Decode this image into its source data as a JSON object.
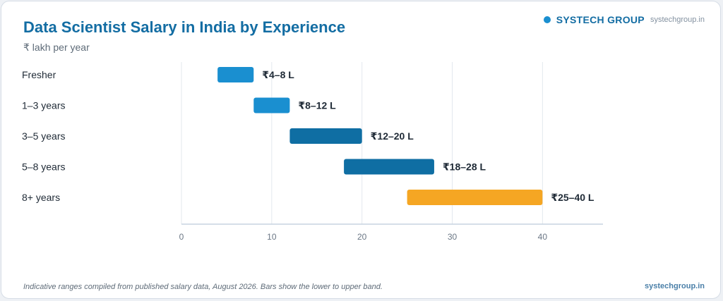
{
  "header": {
    "title": "Data Scientist Salary in India by Experience",
    "subtitle": "₹ lakh per year"
  },
  "brand": {
    "name": "SYSTECH GROUP",
    "site": "systechgroup.in",
    "dot_color": "#1a8fd0"
  },
  "footer": {
    "note": "Indicative ranges compiled from published salary data, August 2026. Bars show the lower to upper band.",
    "site": "systechgroup.in"
  },
  "chart_data": {
    "type": "bar",
    "orientation": "horizontal",
    "style": "floating-range",
    "title": "Data Scientist Salary in India by Experience",
    "subtitle": "₹ lakh per year",
    "categories": [
      "Fresher",
      "1–3 years",
      "3–5 years",
      "5–8 years",
      "8+ years"
    ],
    "ranges": [
      [
        4,
        8
      ],
      [
        8,
        12
      ],
      [
        12,
        20
      ],
      [
        18,
        28
      ],
      [
        25,
        40
      ]
    ],
    "labels": [
      "₹4–8 L",
      "₹8–12 L",
      "₹12–20 L",
      "₹18–28 L",
      "₹25–40 L"
    ],
    "colors": [
      "#1a8fd0",
      "#1a8fd0",
      "#0f6ea3",
      "#0f6ea3",
      "#f5a623"
    ],
    "xlim": [
      0,
      46.7
    ],
    "xticks": [
      0,
      10,
      20,
      30,
      40
    ],
    "grid": "vertical",
    "legend": "none"
  }
}
